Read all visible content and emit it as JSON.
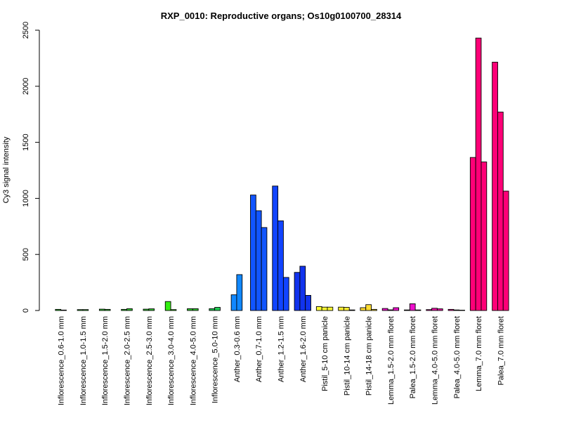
{
  "chart_data": {
    "type": "bar",
    "title": "RXP_0010: Reproductive organs; Os10g0100700_28314",
    "xlabel": "",
    "ylabel": "Cy3 signal intensity",
    "ylim": [
      0,
      2500
    ],
    "yticks": [
      0,
      500,
      1000,
      1500,
      2000,
      2500
    ],
    "grid": false,
    "legend": "none",
    "groups": [
      {
        "label": "Inflorescence_0.6-1.0 mm",
        "color": "#33CC33",
        "values": [
          10,
          4
        ]
      },
      {
        "label": "Inflorescence_1.0-1.5 mm",
        "color": "#33CC33",
        "values": [
          8,
          8
        ]
      },
      {
        "label": "Inflorescence_1.5-2.0 mm",
        "color": "#33CC33",
        "values": [
          12,
          10
        ]
      },
      {
        "label": "Inflorescence_2.0-2.5 mm",
        "color": "#33CC33",
        "values": [
          10,
          16
        ]
      },
      {
        "label": "Inflorescence_2.5-3.0 mm",
        "color": "#33CC33",
        "values": [
          12,
          15
        ]
      },
      {
        "label": "Inflorescence_3.0-4.0 mm",
        "color": "#33EE11",
        "values": [
          80,
          8
        ]
      },
      {
        "label": "Inflorescence_4.0-5.0 mm",
        "color": "#33CC33",
        "values": [
          16,
          16
        ]
      },
      {
        "label": "Inflorescence_5.0-10 mm",
        "color": "#22CC55",
        "values": [
          16,
          28
        ]
      },
      {
        "label": "Anther_0.3-0.6 mm",
        "color": "#1188FF",
        "values": [
          140,
          320
        ]
      },
      {
        "label": "Anther_0.7-1.0 mm",
        "color": "#1155FF",
        "values": [
          1030,
          890,
          740
        ]
      },
      {
        "label": "Anther_1.2-1.5 mm",
        "color": "#1144FF",
        "values": [
          1110,
          800,
          295
        ]
      },
      {
        "label": "Anther_1.6-2.0 mm",
        "color": "#1133EE",
        "values": [
          340,
          395,
          135
        ]
      },
      {
        "label": "Pistil_5-10 cm panicle",
        "color": "#FFFF33",
        "values": [
          35,
          30,
          30
        ]
      },
      {
        "label": "Pistil_10-14 cm panicle",
        "color": "#FFEE33",
        "values": [
          30,
          28,
          5
        ]
      },
      {
        "label": "Pistil_14-18 cm panicle",
        "color": "#FFDD33",
        "values": [
          25,
          52,
          10
        ]
      },
      {
        "label": "Lemma_1.5-2.0 mm floret",
        "color": "#EE11CC",
        "values": [
          18,
          6,
          25
        ]
      },
      {
        "label": "Palea_1.5-2.0 mm floret",
        "color": "#EE11CC",
        "values": [
          5,
          60,
          5
        ]
      },
      {
        "label": "Lemma_4.0-5.0 mm floret",
        "color": "#EE11AA",
        "values": [
          8,
          20,
          15
        ]
      },
      {
        "label": "Palea_4.0-5.0 mm floret",
        "color": "#EE1199",
        "values": [
          10,
          5,
          3
        ]
      },
      {
        "label": "Lemma_7.0 mm floret",
        "color": "#FF0077",
        "values": [
          1365,
          2430,
          1325
        ]
      },
      {
        "label": "Palea_7.0 mm floret",
        "color": "#FF0077",
        "values": [
          2215,
          1770,
          1065
        ]
      }
    ]
  }
}
